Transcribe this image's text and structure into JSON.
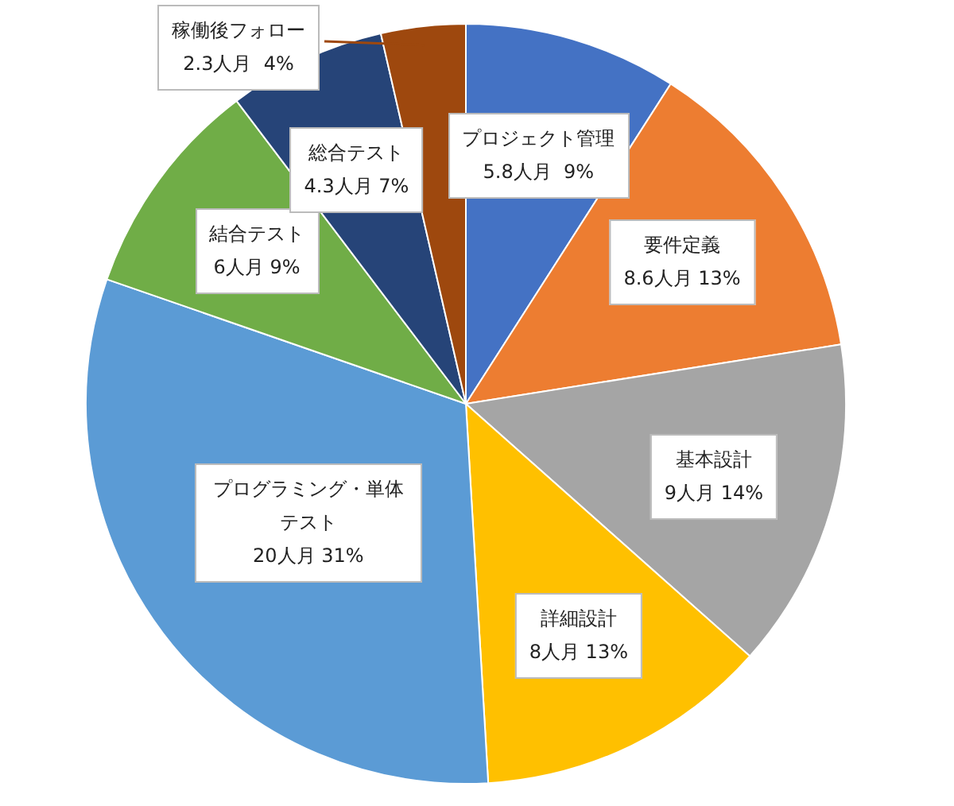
{
  "chart_data": {
    "type": "pie",
    "categories": [
      "プロジェクト管理",
      "要件定義",
      "基本設計",
      "詳細設計",
      "プログラミング・単体テスト",
      "結合テスト",
      "総合テスト",
      "稼働後フォロー"
    ],
    "values": [
      5.8,
      8.6,
      9,
      8,
      20,
      6,
      4.3,
      2.3
    ],
    "value_labels": [
      "5.8人月  9%",
      "8.6人月 13%",
      "9人月 14%",
      "8人月 13%",
      "20人月 31%",
      "6人月 9%",
      "4.3人月 7%",
      "2.3人月  4%"
    ],
    "colors": [
      "#4472c4",
      "#ed7d31",
      "#a5a5a5",
      "#ffc000",
      "#5b9bd5",
      "#70ad47",
      "#264478",
      "#9e480e"
    ]
  }
}
